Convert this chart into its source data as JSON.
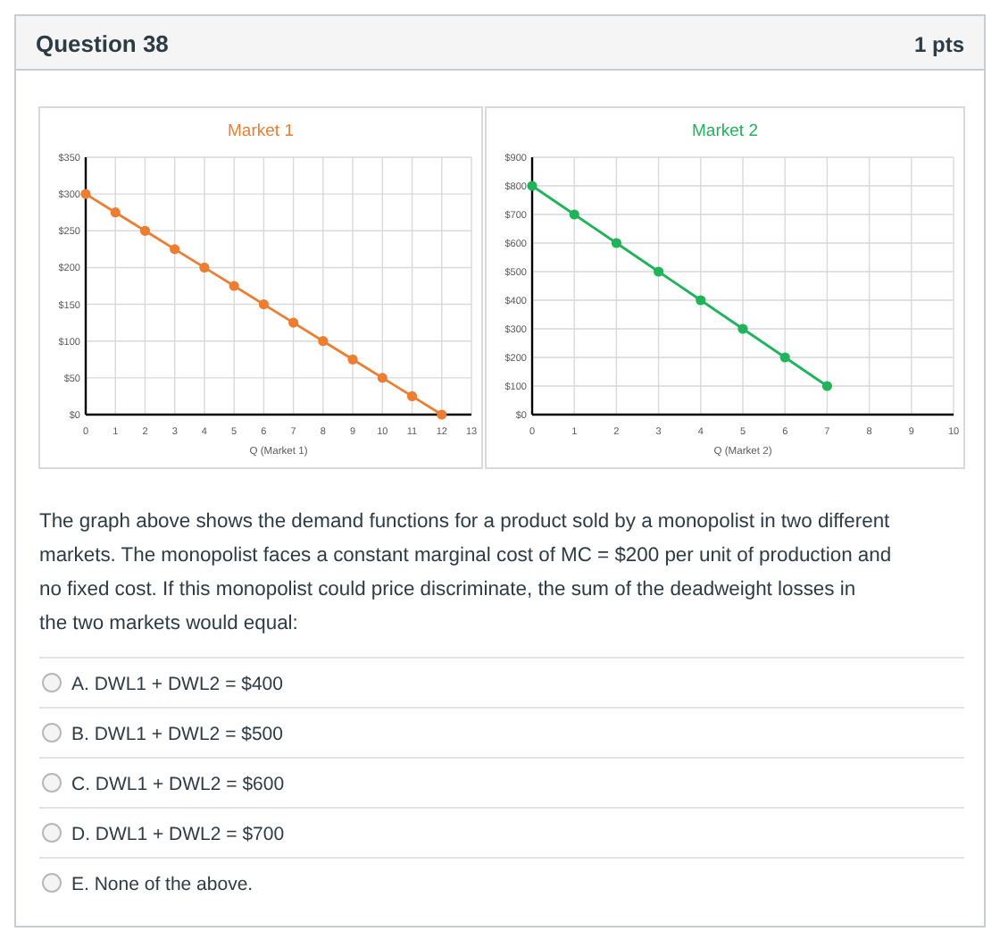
{
  "chart_data": [
    {
      "type": "other",
      "title": "Question 38",
      "annotations": [
        "1 pts"
      ]
    },
    {
      "type": "line",
      "title": "Market 1",
      "xlabel": "Q (Market 1)",
      "x": [
        0,
        1,
        2,
        3,
        4,
        5,
        6,
        7,
        8,
        9,
        10,
        11,
        12
      ],
      "series": [
        {
          "color": "#ed7d31",
          "values": [
            300,
            275,
            250,
            225,
            200,
            175,
            150,
            125,
            100,
            75,
            50,
            25,
            0
          ]
        }
      ],
      "xlim": [
        0,
        13
      ],
      "xticks": [
        0,
        1,
        2,
        3,
        4,
        5,
        6,
        7,
        8,
        9,
        10,
        11,
        12,
        13
      ],
      "ylim": [
        0,
        350
      ],
      "yticks": [
        {
          "value": 0,
          "label": "$0"
        },
        {
          "value": 50,
          "label": "$50"
        },
        {
          "value": 100,
          "label": "$100"
        },
        {
          "value": 150,
          "label": "$150"
        },
        {
          "value": 200,
          "label": "$200"
        },
        {
          "value": 250,
          "label": "$250"
        },
        {
          "value": 300,
          "label": "$300"
        },
        {
          "value": 350,
          "label": "$350"
        }
      ],
      "grid": true,
      "marker": "circle"
    },
    {
      "type": "line",
      "title": "Market 2",
      "xlabel": "Q (Market 2)",
      "x": [
        0,
        1,
        2,
        3,
        4,
        5,
        6,
        7
      ],
      "series": [
        {
          "color": "#1fb35a",
          "values": [
            800,
            700,
            600,
            500,
            400,
            300,
            200,
            100
          ]
        }
      ],
      "xlim": [
        0,
        10
      ],
      "xticks": [
        0,
        1,
        2,
        3,
        4,
        5,
        6,
        7,
        8,
        9,
        10
      ],
      "ylim": [
        0,
        900
      ],
      "yticks": [
        {
          "value": 0,
          "label": "$0"
        },
        {
          "value": 100,
          "label": "$100"
        },
        {
          "value": 200,
          "label": "$200"
        },
        {
          "value": 300,
          "label": "$300"
        },
        {
          "value": 400,
          "label": "$400"
        },
        {
          "value": 500,
          "label": "$500"
        },
        {
          "value": 600,
          "label": "$600"
        },
        {
          "value": 700,
          "label": "$700"
        },
        {
          "value": 800,
          "label": "$800"
        },
        {
          "value": 900,
          "label": "$900"
        }
      ],
      "grid": true,
      "marker": "circle"
    },
    {
      "type": "other",
      "annotations": [
        "The graph above shows the demand functions for a product sold by a monopolist in two different markets. The monopolist faces a constant marginal cost of MC = $200 per unit of production and no fixed cost. If this monopolist could price discriminate, the sum of the deadweight losses in the two markets would equal:",
        "A. DWL1 + DWL2 = $400",
        "B. DWL1 + DWL2 = $500",
        "C. DWL1 + DWL2 = $600",
        "D. DWL1 + DWL2 = $700",
        "E. None of the above."
      ]
    }
  ]
}
